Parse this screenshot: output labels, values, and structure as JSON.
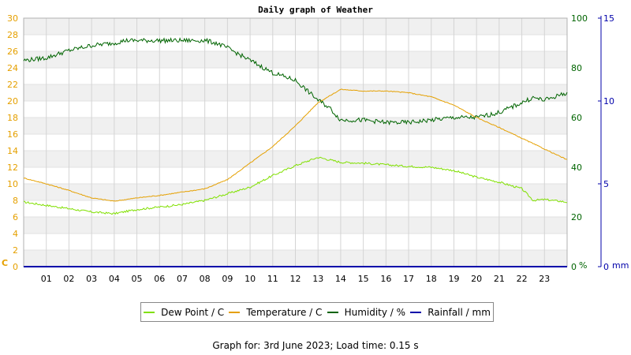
{
  "chart_data": {
    "type": "line",
    "title": "Daily graph of Weather",
    "x_ticks": [
      "01",
      "02",
      "03",
      "04",
      "05",
      "06",
      "07",
      "08",
      "09",
      "10",
      "11",
      "12",
      "13",
      "14",
      "15",
      "16",
      "17",
      "18",
      "19",
      "20",
      "21",
      "22",
      "23"
    ],
    "x_range_hours": [
      0,
      24
    ],
    "axes": {
      "temperature": {
        "unit_label": "C",
        "range": [
          0,
          30
        ],
        "ticks": [
          "0",
          "2",
          "4",
          "6",
          "8",
          "10",
          "12",
          "14",
          "16",
          "18",
          "20",
          "22",
          "24",
          "26",
          "28",
          "30"
        ],
        "color": "#e5a000"
      },
      "humidity": {
        "unit_label": "%",
        "range": [
          0,
          100
        ],
        "ticks": [
          "0",
          "20",
          "40",
          "60",
          "80",
          "100"
        ],
        "color": "#006400"
      },
      "rainfall": {
        "unit_label": "mm",
        "range": [
          0,
          15
        ],
        "ticks": [
          "0",
          "5",
          "10",
          "15"
        ],
        "color": "#0000aa"
      }
    },
    "series": [
      {
        "name": "Dew Point / C",
        "axis": "temperature",
        "color": "#80e000",
        "x": [
          0,
          1,
          2,
          3,
          4,
          5,
          6,
          7,
          8,
          9,
          10,
          11,
          12,
          13,
          14,
          15,
          16,
          17,
          18,
          19,
          20,
          21,
          22,
          22.5,
          23,
          24
        ],
        "y": [
          7.8,
          7.4,
          7.0,
          6.6,
          6.4,
          6.9,
          7.2,
          7.5,
          8.0,
          8.8,
          9.6,
          11.0,
          12.2,
          13.2,
          12.6,
          12.5,
          12.3,
          12.1,
          12.0,
          11.6,
          10.8,
          10.2,
          9.4,
          8.0,
          8.1,
          7.8
        ]
      },
      {
        "name": "Temperature / C",
        "axis": "temperature",
        "color": "#e5a000",
        "x": [
          0,
          1,
          2,
          3,
          4,
          5,
          6,
          7,
          8,
          9,
          10,
          11,
          12,
          13,
          14,
          15,
          16,
          17,
          18,
          19,
          20,
          21,
          22,
          23,
          24
        ],
        "y": [
          10.7,
          10.0,
          9.2,
          8.3,
          7.9,
          8.3,
          8.6,
          9.0,
          9.4,
          10.5,
          12.5,
          14.5,
          17.0,
          19.8,
          21.4,
          21.2,
          21.2,
          21.0,
          20.5,
          19.5,
          18.0,
          16.8,
          15.5,
          14.2,
          12.9
        ]
      },
      {
        "name": "Humidity / %",
        "axis": "humidity",
        "color": "#006400",
        "x": [
          0,
          1,
          2,
          3,
          4,
          4.5,
          5,
          6,
          7,
          8,
          8.5,
          9,
          10,
          11,
          12,
          13,
          13.5,
          14,
          15,
          16,
          17,
          18,
          19,
          20,
          21,
          22,
          22.5,
          23,
          24
        ],
        "y": [
          83,
          84,
          87,
          89,
          90,
          91,
          91,
          91,
          91,
          91,
          90,
          88,
          83,
          78,
          75,
          67,
          64,
          59,
          59,
          58,
          58,
          59,
          60,
          60,
          62,
          66,
          68,
          67,
          70
        ]
      },
      {
        "name": "Rainfall / mm",
        "axis": "rainfall",
        "color": "#0000aa",
        "x": [
          0,
          24
        ],
        "y": [
          0,
          0
        ]
      }
    ],
    "grid": true,
    "legend_position": "bottom"
  },
  "footer": "Graph for: 3rd June 2023; Load time: 0.15 s"
}
